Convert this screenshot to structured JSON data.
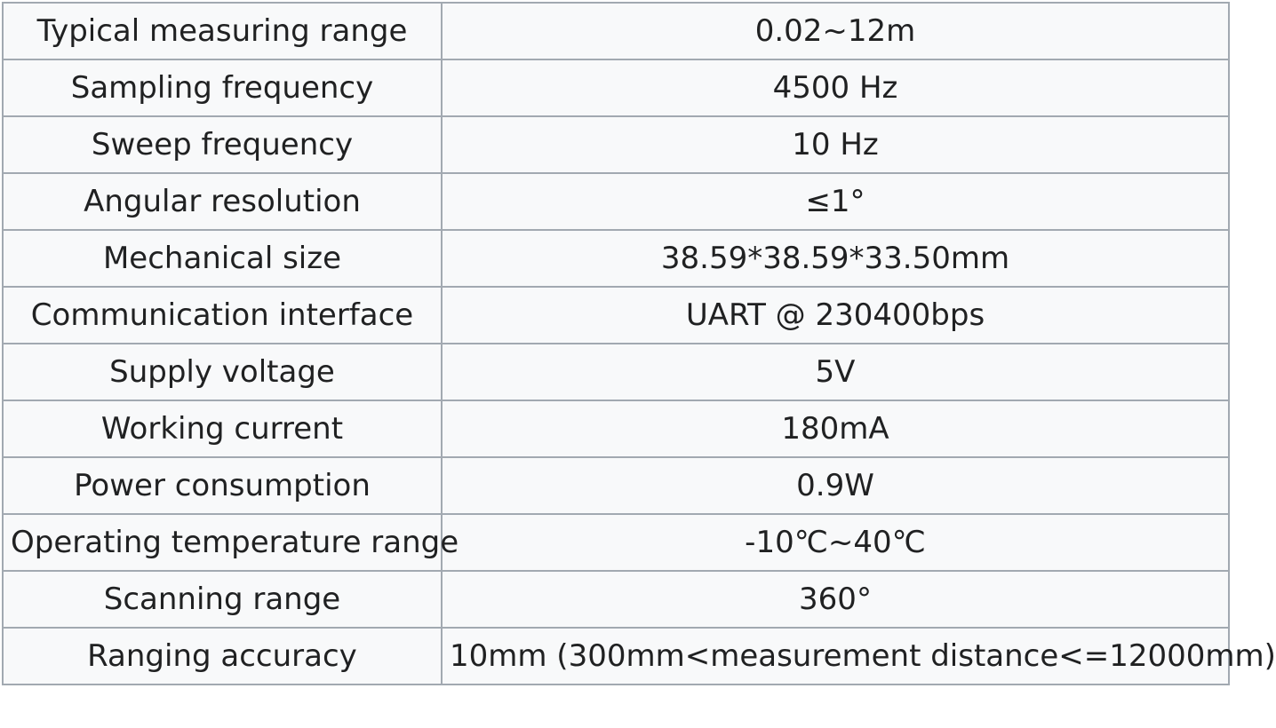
{
  "spec_table": {
    "rows": [
      {
        "parameter": "Typical measuring range",
        "value": "0.02~12m"
      },
      {
        "parameter": "Sampling frequency",
        "value": "4500 Hz"
      },
      {
        "parameter": "Sweep frequency",
        "value": "10 Hz"
      },
      {
        "parameter": "Angular resolution",
        "value": "≤1°"
      },
      {
        "parameter": "Mechanical size",
        "value": "38.59*38.59*33.50mm"
      },
      {
        "parameter": "Communication interface",
        "value": "UART @ 230400bps"
      },
      {
        "parameter": "Supply voltage",
        "value": "5V"
      },
      {
        "parameter": "Working current",
        "value": "180mA"
      },
      {
        "parameter": "Power consumption",
        "value": "0.9W"
      },
      {
        "parameter": "Operating temperature range",
        "value": "-10℃~40℃"
      },
      {
        "parameter": "Scanning range",
        "value": "360°"
      },
      {
        "parameter": "Ranging accuracy",
        "value": "10mm (300mm<measurement distance<=12000mm)"
      }
    ]
  }
}
